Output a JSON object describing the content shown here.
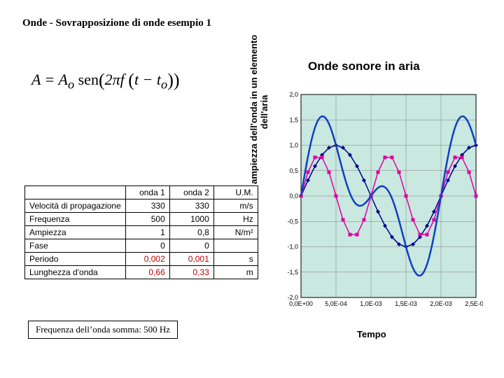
{
  "title": "Onde - Sovrapposizione di onde esempio 1",
  "formula": {
    "lhs": "A",
    "rhs_prefix": "A",
    "rhs_sub": "o",
    "fn": "sen",
    "inner": "2πf",
    "time": "t − t",
    "time_sub": "o"
  },
  "chart": {
    "title": "Onde sonore in aria",
    "ylabel_line1": "ampiezza dell'onda in un elemento",
    "ylabel_line2": "dell'aria",
    "xlabel": "Tempo",
    "background_color": "#c8e8e0",
    "grid_color": "#808080",
    "ylim": [
      -2.0,
      2.0
    ],
    "yticks": [
      -2.0,
      -1.5,
      -1.0,
      -0.5,
      0.0,
      0.5,
      1.0,
      1.5,
      2.0
    ],
    "ytick_labels": [
      "-2,0",
      "-1,5",
      "-1,0",
      "-0,5",
      "0,0",
      "0,5",
      "1,0",
      "1,5",
      "2,0"
    ],
    "xlim": [
      0,
      0.0025
    ],
    "xticks": [
      0,
      0.0005,
      0.001,
      0.0015,
      0.002,
      0.0025
    ],
    "xtick_labels": [
      "0,0E+00",
      "5,0E-04",
      "1,0E-03",
      "1,5E-03",
      "2,0E-03",
      "2,5E-03"
    ],
    "series": [
      {
        "name": "onda1",
        "color": "#00008b",
        "markers": true,
        "freq": 500,
        "amp": 1.0,
        "phase": 0
      },
      {
        "name": "onda2",
        "color": "#e000a0",
        "markers": true,
        "freq": 1000,
        "amp": 0.8,
        "phase": 0
      },
      {
        "name": "somma",
        "color": "#1040c0",
        "markers": false,
        "linewidth": 2.5
      }
    ],
    "n_points": 26
  },
  "table": {
    "headers": [
      "",
      "onda 1",
      "onda 2",
      "U.M."
    ],
    "rows": [
      {
        "label": "Velocità di propagazione",
        "v1": "330",
        "v2": "330",
        "um": "m/s"
      },
      {
        "label": "Frequenza",
        "v1": "500",
        "v2": "1000",
        "um": "Hz"
      },
      {
        "label": "Ampiezza",
        "v1": "1",
        "v2": "0,8",
        "um": "N/m²"
      },
      {
        "label": "Fase",
        "v1": "0",
        "v2": "0",
        "um": ""
      },
      {
        "label": "Periodo",
        "v1": "0,002",
        "v2": "0,001",
        "um": "s",
        "highlight": true
      },
      {
        "label": "Lunghezza d'onda",
        "v1": "0,66",
        "v2": "0,33",
        "um": "m",
        "highlight": true
      }
    ]
  },
  "sum_freq_label": "Frequenza dell’onda somma: 500 Hz"
}
